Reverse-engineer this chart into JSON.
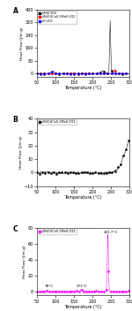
{
  "panel_A": {
    "label": "A",
    "ylabel": "Heat Flow (J/m g)",
    "xlabel": "Temperature (°C)",
    "xlim": [
      50,
      300
    ],
    "ylim": [
      -20,
      400
    ],
    "yticks": [
      0,
      80,
      160,
      240,
      320,
      400
    ],
    "xticks": [
      50,
      100,
      150,
      200,
      250,
      300
    ],
    "legend": [
      "LiNi0.3O2",
      "LiNi0.6Co0.2Mn0.2O2",
      "LiCoO2"
    ],
    "colors": [
      "black",
      "red",
      "blue"
    ]
  },
  "panel_B": {
    "label": "B",
    "ylabel": "Heat Flow (J/m g)",
    "xlabel": "Temperature (°C)",
    "xlim": [
      50,
      300
    ],
    "ylim": [
      -10,
      40
    ],
    "yticks": [
      -10,
      0,
      10,
      20,
      30,
      40
    ],
    "xticks": [
      50,
      100,
      150,
      200,
      250,
      300
    ],
    "legend": "LiNi0.6Co0.2Mn0.2O2",
    "color": "black"
  },
  "panel_C": {
    "label": "C",
    "ylabel": "Heat Flow (J/m g)",
    "xlabel": "Temperature (°C)",
    "xlim": [
      50,
      300
    ],
    "ylim": [
      -5,
      80
    ],
    "yticks": [
      0,
      20,
      40,
      60,
      80
    ],
    "xticks": [
      50,
      100,
      150,
      200,
      250,
      300
    ],
    "legend": "LiNi0.6Co0.2Mn0.2O2",
    "color": "#FF00FF",
    "ann1_text": "78°C",
    "ann2_text": "171°C",
    "ann3_text": "241.7°C"
  },
  "fig_bg": "#ffffff"
}
